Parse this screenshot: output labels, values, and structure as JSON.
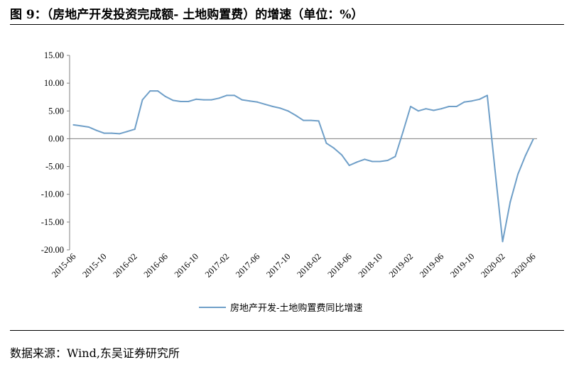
{
  "figure": {
    "title": "图 9：（房地产开发投资完成额- 土地购置费）的增速（单位：%）",
    "source": "数据来源：Wind,东吴证券研究所"
  },
  "chart_data": {
    "type": "line",
    "title": "图 9：（房地产开发投资完成额- 土地购置费）的增速（单位：%）",
    "xlabel": "",
    "ylabel": "",
    "ylim": [
      -20,
      15
    ],
    "yticks": [
      15,
      10,
      5,
      0,
      -5,
      -10,
      -15,
      -20
    ],
    "ytick_labels": [
      "15.00",
      "10.00",
      "5.00",
      "0.00",
      "-5.00",
      "-10.00",
      "-15.00",
      "-20.00"
    ],
    "xtick_labels": [
      "2015-06",
      "2015-10",
      "2016-02",
      "2016-06",
      "2016-10",
      "2017-02",
      "2017-06",
      "2017-10",
      "2018-02",
      "2018-06",
      "2018-10",
      "2019-02",
      "2019-06",
      "2019-10",
      "2020-02",
      "2020-06"
    ],
    "grid": false,
    "legend_position": "bottom",
    "series": [
      {
        "name": "房地产开发-土地购置费同比增速",
        "color": "#6f9fc8",
        "x": [
          "2015-06",
          "2015-07",
          "2015-08",
          "2015-09",
          "2015-10",
          "2015-11",
          "2015-12",
          "2016-01",
          "2016-02",
          "2016-03",
          "2016-04",
          "2016-05",
          "2016-06",
          "2016-07",
          "2016-08",
          "2016-09",
          "2016-10",
          "2016-11",
          "2016-12",
          "2017-01",
          "2017-02",
          "2017-03",
          "2017-04",
          "2017-05",
          "2017-06",
          "2017-07",
          "2017-08",
          "2017-09",
          "2017-10",
          "2017-11",
          "2017-12",
          "2018-01",
          "2018-02",
          "2018-03",
          "2018-04",
          "2018-05",
          "2018-06",
          "2018-07",
          "2018-08",
          "2018-09",
          "2018-10",
          "2018-11",
          "2018-12",
          "2019-01",
          "2019-02",
          "2019-03",
          "2019-04",
          "2019-05",
          "2019-06",
          "2019-07",
          "2019-08",
          "2019-09",
          "2019-10",
          "2019-11",
          "2019-12",
          "2020-01",
          "2020-02",
          "2020-03",
          "2020-04",
          "2020-05",
          "2020-06"
        ],
        "values": [
          2.5,
          2.3,
          2.1,
          1.5,
          1.0,
          1.0,
          0.9,
          1.3,
          1.7,
          7.0,
          8.6,
          8.6,
          7.6,
          6.9,
          6.7,
          6.7,
          7.1,
          7.0,
          7.0,
          7.3,
          7.8,
          7.8,
          7.0,
          6.8,
          6.6,
          6.2,
          5.8,
          5.5,
          5.0,
          4.2,
          3.3,
          3.3,
          3.2,
          -0.8,
          -1.7,
          -2.9,
          -4.8,
          -4.2,
          -3.7,
          -4.1,
          -4.1,
          -3.9,
          -3.2,
          1.2,
          5.8,
          5.0,
          5.4,
          5.1,
          5.4,
          5.8,
          5.8,
          6.6,
          6.8,
          7.1,
          7.8,
          -5.5,
          -18.5,
          -11.4,
          -6.4,
          -3.0,
          -0.1
        ]
      }
    ]
  }
}
